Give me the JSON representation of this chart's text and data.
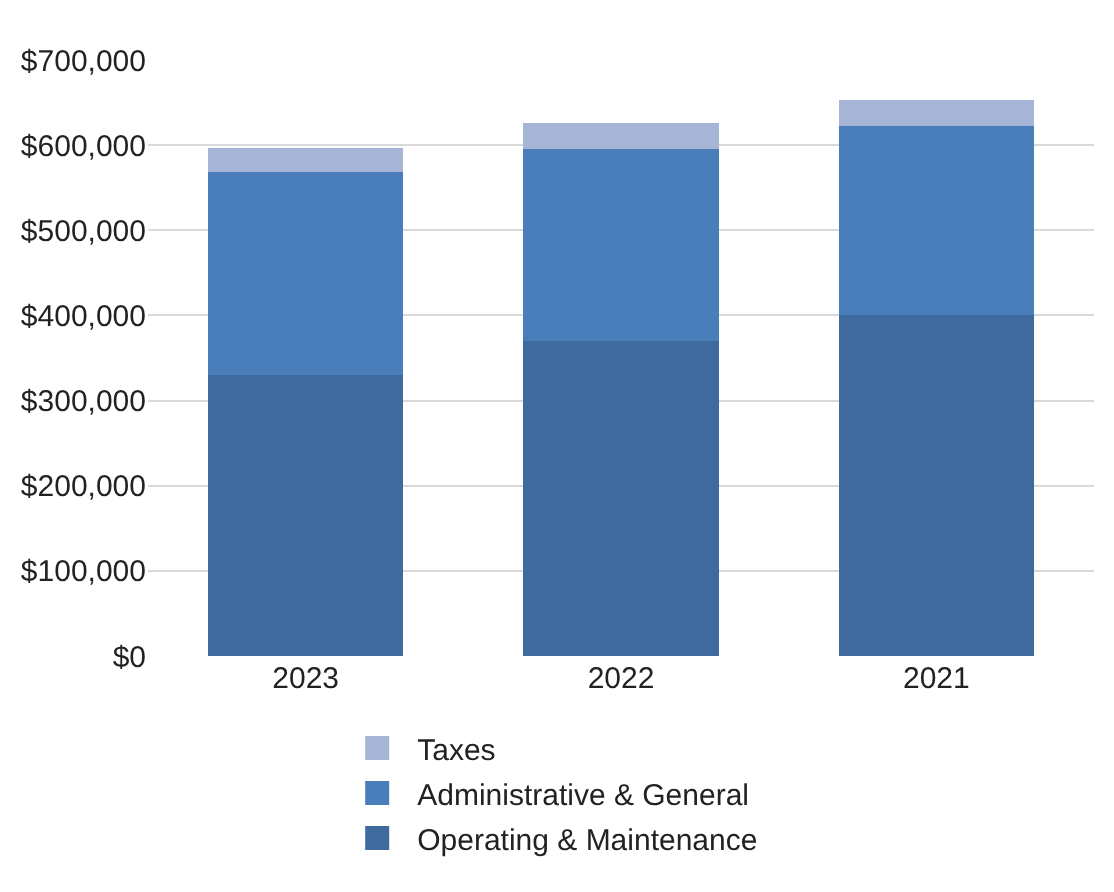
{
  "chart_data": {
    "type": "bar",
    "stacked": true,
    "categories": [
      "2023",
      "2022",
      "2021"
    ],
    "series": [
      {
        "name": "Operating & Maintenance",
        "color": "#3f6a9e",
        "values": [
          330000,
          370000,
          400000
        ]
      },
      {
        "name": "Administrative & General",
        "color": "#4a7ebb",
        "values": [
          238000,
          226000,
          223000
        ]
      },
      {
        "name": "Taxes",
        "color": "#a6b5d6",
        "values": [
          29000,
          30000,
          30000
        ]
      }
    ],
    "ylim": [
      0,
      700000
    ],
    "yticks": [
      {
        "value": 0,
        "label": "$0"
      },
      {
        "value": 100000,
        "label": "$100,000"
      },
      {
        "value": 200000,
        "label": "$200,000"
      },
      {
        "value": 300000,
        "label": "$300,000"
      },
      {
        "value": 400000,
        "label": "$400,000"
      },
      {
        "value": 500000,
        "label": "$500,000"
      },
      {
        "value": 600000,
        "label": "$600,000"
      },
      {
        "value": 700000,
        "label": "$700,000"
      }
    ],
    "grid": "y",
    "legend": "bottom"
  }
}
